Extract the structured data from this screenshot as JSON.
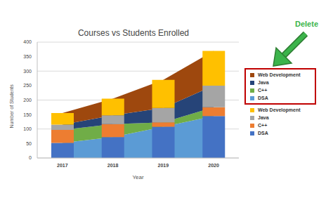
{
  "chart_data": {
    "type": "bar",
    "title": "Courses vs Students Enrolled",
    "x_label": "Year",
    "y_label": "Number of Students",
    "categories": [
      "2017",
      "2018",
      "2019",
      "2020"
    ],
    "series": [
      {
        "name": "DSA",
        "type": "area",
        "color": "#5b9bd5",
        "values": [
          52,
          72,
          108,
          145
        ]
      },
      {
        "name": "C++",
        "type": "area",
        "color": "#70ad47",
        "values": [
          45,
          45,
          15,
          30
        ]
      },
      {
        "name": "Java",
        "type": "area",
        "color": "#264478",
        "values": [
          18,
          30,
          50,
          75
        ]
      },
      {
        "name": "Web Development",
        "type": "area",
        "color": "#9e480e",
        "values": [
          40,
          58,
          97,
          120
        ]
      },
      {
        "name": "DSA",
        "type": "bar",
        "color": "#4472c4",
        "values": [
          52,
          72,
          108,
          145
        ]
      },
      {
        "name": "C++",
        "type": "bar",
        "color": "#ed7d31",
        "values": [
          45,
          45,
          15,
          30
        ]
      },
      {
        "name": "Java",
        "type": "bar",
        "color": "#a5a5a5",
        "values": [
          18,
          30,
          50,
          75
        ]
      },
      {
        "name": "Web Development",
        "type": "bar",
        "color": "#ffc000",
        "values": [
          40,
          58,
          97,
          120
        ]
      }
    ],
    "ylim": [
      0,
      400
    ],
    "yticks": [
      0,
      50,
      100,
      150,
      200,
      250,
      300,
      350,
      400
    ],
    "grid": true,
    "stacked": true,
    "legend": "right",
    "annotation": "Delete"
  }
}
